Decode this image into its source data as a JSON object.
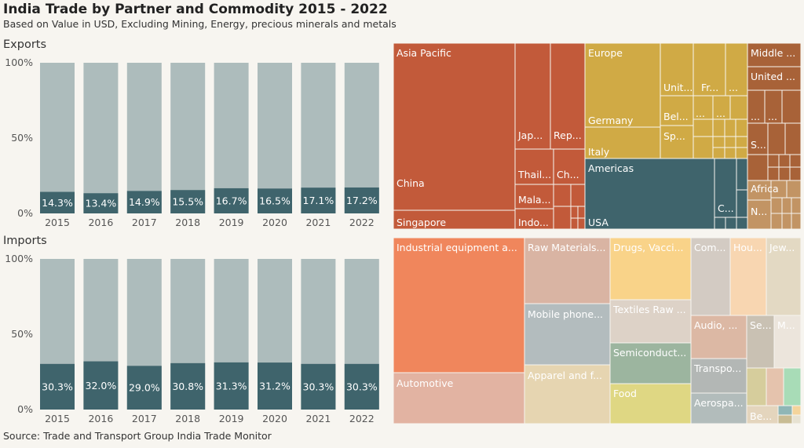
{
  "title": "India Trade by Partner and Commodity 2015 - 2022",
  "subtitle": "Based on Value in USD, Excluding Mining, Energy, precious minerals and metals",
  "source": "Source: Trade and Transport Group India Trade Monitor",
  "colors": {
    "background": "#f7f5f0",
    "bar_total": "#adbcbc",
    "bar_share": "#3f646c",
    "asia_pacific": "#c25a3a",
    "europe": "#d0aa45",
    "americas": "#3f646c",
    "middle_east": "#a86238",
    "africa": "#c29464"
  },
  "chart_data": [
    {
      "type": "bar",
      "title": "Exports",
      "categories": [
        "2015",
        "2016",
        "2017",
        "2018",
        "2019",
        "2020",
        "2021",
        "2022"
      ],
      "values": [
        14.3,
        13.4,
        14.9,
        15.5,
        16.7,
        16.5,
        17.1,
        17.2
      ],
      "value_labels": [
        "14.3%",
        "13.4%",
        "14.9%",
        "15.5%",
        "16.7%",
        "16.5%",
        "17.1%",
        "17.2%"
      ],
      "ylim": [
        0,
        100
      ],
      "ytick_labels": [
        "0%",
        "50%",
        "100%"
      ],
      "grid": false
    },
    {
      "type": "bar",
      "title": "Imports",
      "categories": [
        "2015",
        "2016",
        "2017",
        "2018",
        "2019",
        "2020",
        "2021",
        "2022"
      ],
      "values": [
        30.3,
        32.0,
        29.0,
        30.8,
        31.3,
        31.2,
        30.3,
        30.3
      ],
      "value_labels": [
        "30.3%",
        "32.0%",
        "29.0%",
        "30.8%",
        "31.3%",
        "31.2%",
        "30.3%",
        "30.3%"
      ],
      "ylim": [
        0,
        100
      ],
      "ytick_labels": [
        "0%",
        "50%",
        "100%"
      ],
      "grid": false
    }
  ],
  "partner_treemap": {
    "regions": [
      "Asia Pacific",
      "Europe",
      "Americas",
      "Middle ...",
      "Africa"
    ],
    "countries": [
      "China",
      "Singapore",
      "Jap...",
      "Rep...",
      "Thail...",
      "Ch...",
      "Mala...",
      "Indo...",
      "Germany",
      "Italy",
      "Unit...",
      "Fr...",
      "...",
      "Bel...",
      "Sp...",
      "USA",
      "C...",
      "United ...",
      "S...",
      "N..."
    ]
  },
  "commodity_treemap": {
    "items": [
      "Industrial equipment a...",
      "Automotive",
      "Raw Materials...",
      "Mobile phone...",
      "Apparel and f...",
      "Drugs, Vacci...",
      "Textiles Raw ...",
      "Semiconduct...",
      "Food",
      "Com...",
      "Hou...",
      "Jew...",
      "Audio, ...",
      "Se...",
      "M...",
      "Transpo...",
      "Aerospa...",
      "Be..."
    ]
  }
}
